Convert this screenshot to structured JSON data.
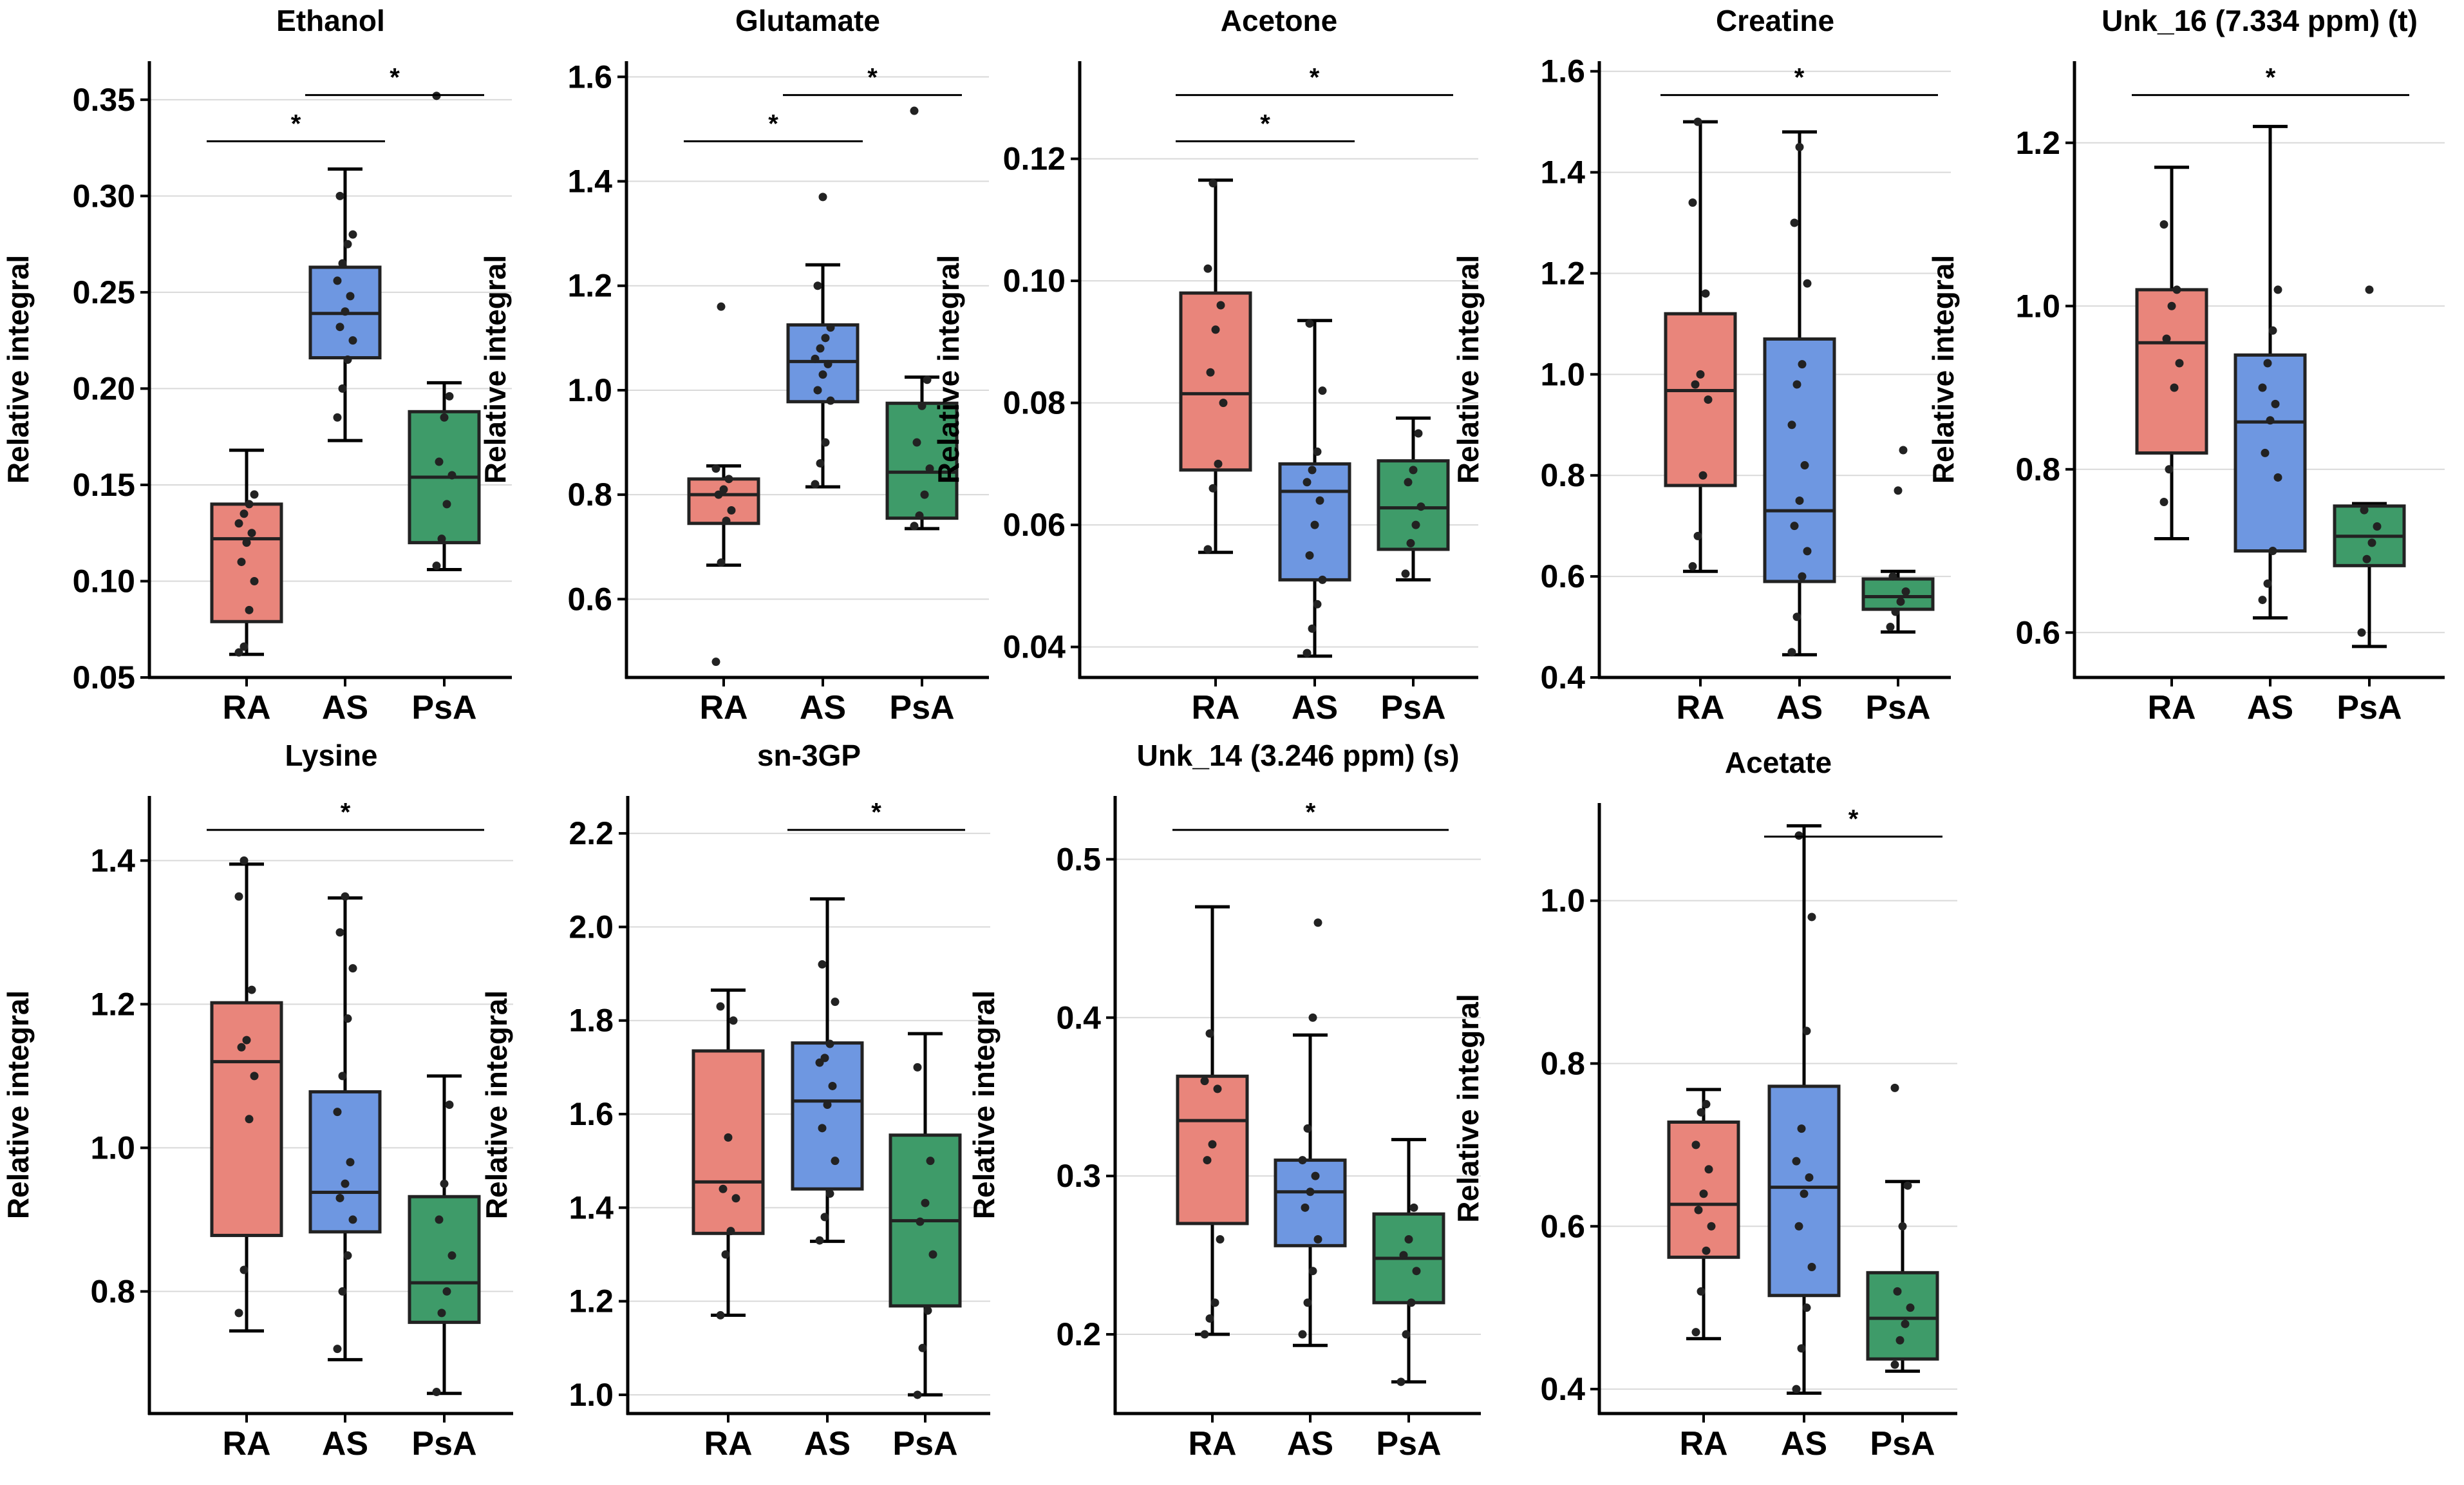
{
  "chart_data": [
    {
      "type": "box",
      "title": "Ethanol",
      "ylabel": "Relative integral",
      "categories": [
        "RA",
        "AS",
        "PsA"
      ],
      "ylim": [
        0.05,
        0.37
      ],
      "yticks": [
        0.05,
        0.1,
        0.15,
        0.2,
        0.25,
        0.3,
        0.35
      ],
      "tick_labels": [
        "0.05",
        "0.10",
        "0.15",
        "0.20",
        "0.25",
        "0.30",
        "0.35"
      ],
      "boxes": [
        {
          "group": "RA",
          "color": "#e9857b",
          "min": 0.062,
          "q1": 0.079,
          "median": 0.122,
          "q3": 0.14,
          "max": 0.168,
          "points": [
            0.063,
            0.066,
            0.085,
            0.1,
            0.11,
            0.12,
            0.125,
            0.13,
            0.135,
            0.14,
            0.145
          ]
        },
        {
          "group": "AS",
          "color": "#6e97e1",
          "min": 0.173,
          "q1": 0.216,
          "median": 0.239,
          "q3": 0.263,
          "max": 0.314,
          "points": [
            0.185,
            0.2,
            0.215,
            0.225,
            0.232,
            0.24,
            0.248,
            0.256,
            0.265,
            0.275,
            0.28,
            0.3
          ]
        },
        {
          "group": "PsA",
          "color": "#3e9b69",
          "min": 0.106,
          "q1": 0.12,
          "median": 0.154,
          "q3": 0.188,
          "max": 0.203,
          "points": [
            0.108,
            0.122,
            0.14,
            0.155,
            0.162,
            0.185,
            0.196,
            0.352
          ]
        }
      ],
      "significance": [
        {
          "pair": [
            "RA",
            "AS"
          ],
          "label": "*"
        },
        {
          "pair": [
            "AS",
            "PsA"
          ],
          "label": "*"
        }
      ]
    },
    {
      "type": "box",
      "title": "Glutamate",
      "ylabel": "Relative integral",
      "categories": [
        "RA",
        "AS",
        "PsA"
      ],
      "ylim": [
        0.45,
        1.63
      ],
      "yticks": [
        0.6,
        0.8,
        1.0,
        1.2,
        1.4,
        1.6
      ],
      "tick_labels": [
        "0.6",
        "0.8",
        "1.0",
        "1.2",
        "1.4",
        "1.6"
      ],
      "boxes": [
        {
          "group": "RA",
          "color": "#e9857b",
          "min": 0.665,
          "q1": 0.745,
          "median": 0.8,
          "q3": 0.83,
          "max": 0.855,
          "points": [
            0.48,
            0.67,
            0.75,
            0.77,
            0.8,
            0.81,
            0.83,
            0.85,
            1.16
          ]
        },
        {
          "group": "AS",
          "color": "#6e97e1",
          "min": 0.815,
          "q1": 0.978,
          "median": 1.055,
          "q3": 1.125,
          "max": 1.24,
          "points": [
            0.82,
            0.86,
            0.9,
            0.98,
            1.0,
            1.03,
            1.05,
            1.06,
            1.08,
            1.1,
            1.12,
            1.2,
            1.37
          ]
        },
        {
          "group": "PsA",
          "color": "#3e9b69",
          "min": 0.735,
          "q1": 0.755,
          "median": 0.843,
          "q3": 0.975,
          "max": 1.025,
          "points": [
            0.74,
            0.76,
            0.8,
            0.85,
            0.9,
            0.97,
            1.02,
            1.535
          ]
        }
      ],
      "significance": [
        {
          "pair": [
            "RA",
            "AS"
          ],
          "label": "*"
        },
        {
          "pair": [
            "AS",
            "PsA"
          ],
          "label": "*"
        }
      ]
    },
    {
      "type": "box",
      "title": "Acetone",
      "ylabel": "Relative integral",
      "categories": [
        "RA",
        "AS",
        "PsA"
      ],
      "ylim": [
        0.035,
        0.136
      ],
      "yticks": [
        0.04,
        0.06,
        0.08,
        0.1,
        0.12
      ],
      "tick_labels": [
        "0.04",
        "0.06",
        "0.08",
        "0.10",
        "0.12"
      ],
      "boxes": [
        {
          "group": "RA",
          "color": "#e9857b",
          "min": 0.0555,
          "q1": 0.069,
          "median": 0.0815,
          "q3": 0.098,
          "max": 0.1165,
          "points": [
            0.056,
            0.066,
            0.07,
            0.08,
            0.085,
            0.092,
            0.096,
            0.102,
            0.116
          ]
        },
        {
          "group": "AS",
          "color": "#6e97e1",
          "min": 0.0385,
          "q1": 0.051,
          "median": 0.0655,
          "q3": 0.07,
          "max": 0.0935,
          "points": [
            0.039,
            0.043,
            0.047,
            0.051,
            0.055,
            0.06,
            0.064,
            0.067,
            0.069,
            0.072,
            0.082,
            0.093
          ]
        },
        {
          "group": "PsA",
          "color": "#3e9b69",
          "min": 0.051,
          "q1": 0.056,
          "median": 0.0628,
          "q3": 0.0705,
          "max": 0.0775,
          "points": [
            0.052,
            0.057,
            0.06,
            0.063,
            0.067,
            0.069,
            0.075
          ]
        }
      ],
      "significance": [
        {
          "pair": [
            "RA",
            "AS"
          ],
          "label": "*"
        },
        {
          "pair": [
            "RA",
            "PsA"
          ],
          "label": "*"
        }
      ]
    },
    {
      "type": "box",
      "title": "Creatine",
      "ylabel": "Relative integral",
      "categories": [
        "RA",
        "AS",
        "PsA"
      ],
      "ylim": [
        0.4,
        1.62
      ],
      "yticks": [
        0.4,
        0.6,
        0.8,
        1.0,
        1.2,
        1.4,
        1.6
      ],
      "tick_labels": [
        "0.4",
        "0.6",
        "0.8",
        "1.0",
        "1.2",
        "1.4",
        "1.6"
      ],
      "boxes": [
        {
          "group": "RA",
          "color": "#e9857b",
          "min": 0.61,
          "q1": 0.78,
          "median": 0.968,
          "q3": 1.12,
          "max": 1.5,
          "points": [
            0.62,
            0.68,
            0.8,
            0.95,
            0.98,
            1.0,
            1.16,
            1.34,
            1.5
          ]
        },
        {
          "group": "AS",
          "color": "#6e97e1",
          "min": 0.445,
          "q1": 0.59,
          "median": 0.73,
          "q3": 1.07,
          "max": 1.48,
          "points": [
            0.45,
            0.52,
            0.6,
            0.65,
            0.7,
            0.75,
            0.82,
            0.9,
            0.98,
            1.02,
            1.18,
            1.3,
            1.45
          ]
        },
        {
          "group": "PsA",
          "color": "#3e9b69",
          "min": 0.49,
          "q1": 0.535,
          "median": 0.56,
          "q3": 0.595,
          "max": 0.61,
          "points": [
            0.5,
            0.53,
            0.55,
            0.57,
            0.6,
            0.77,
            0.85
          ]
        }
      ],
      "significance": [
        {
          "pair": [
            "RA",
            "PsA"
          ],
          "label": "*"
        }
      ]
    },
    {
      "type": "box",
      "title": "Unk_16 (7.334 ppm) (t)",
      "ylabel": "Relative integral",
      "categories": [
        "RA",
        "AS",
        "PsA"
      ],
      "ylim": [
        0.545,
        1.3
      ],
      "yticks": [
        0.6,
        0.8,
        1.0,
        1.2
      ],
      "tick_labels": [
        "0.6",
        "0.8",
        "1.0",
        "1.2"
      ],
      "boxes": [
        {
          "group": "RA",
          "color": "#e9857b",
          "min": 0.715,
          "q1": 0.82,
          "median": 0.955,
          "q3": 1.02,
          "max": 1.17,
          "points": [
            0.76,
            0.8,
            0.9,
            0.93,
            0.96,
            1.0,
            1.02,
            1.1
          ]
        },
        {
          "group": "AS",
          "color": "#6e97e1",
          "min": 0.618,
          "q1": 0.7,
          "median": 0.858,
          "q3": 0.94,
          "max": 1.22,
          "points": [
            0.64,
            0.66,
            0.7,
            0.79,
            0.82,
            0.86,
            0.88,
            0.9,
            0.93,
            0.97,
            1.02
          ]
        },
        {
          "group": "PsA",
          "color": "#3e9b69",
          "min": 0.583,
          "q1": 0.682,
          "median": 0.718,
          "q3": 0.755,
          "max": 0.758,
          "points": [
            0.6,
            0.69,
            0.71,
            0.73,
            0.75,
            1.02
          ]
        }
      ],
      "significance": [
        {
          "pair": [
            "RA",
            "PsA"
          ],
          "label": "*"
        }
      ]
    },
    {
      "type": "box",
      "title": "Lysine",
      "ylabel": "Relative integral",
      "categories": [
        "RA",
        "AS",
        "PsA"
      ],
      "ylim": [
        0.63,
        1.49
      ],
      "yticks": [
        0.8,
        1.0,
        1.2,
        1.4
      ],
      "tick_labels": [
        "0.8",
        "1.0",
        "1.2",
        "1.4"
      ],
      "boxes": [
        {
          "group": "RA",
          "color": "#e9857b",
          "min": 0.745,
          "q1": 0.878,
          "median": 1.12,
          "q3": 1.202,
          "max": 1.395,
          "points": [
            0.77,
            0.83,
            1.04,
            1.1,
            1.14,
            1.15,
            1.22,
            1.35,
            1.4
          ]
        },
        {
          "group": "AS",
          "color": "#6e97e1",
          "min": 0.705,
          "q1": 0.883,
          "median": 0.938,
          "q3": 1.078,
          "max": 1.348,
          "points": [
            0.72,
            0.8,
            0.85,
            0.9,
            0.93,
            0.95,
            0.98,
            1.05,
            1.1,
            1.18,
            1.25,
            1.3,
            1.35
          ]
        },
        {
          "group": "PsA",
          "color": "#3e9b69",
          "min": 0.658,
          "q1": 0.757,
          "median": 0.812,
          "q3": 0.932,
          "max": 1.1,
          "points": [
            0.66,
            0.77,
            0.8,
            0.85,
            0.9,
            0.95,
            1.06
          ]
        }
      ],
      "significance": [
        {
          "pair": [
            "RA",
            "PsA"
          ],
          "label": "*"
        }
      ]
    },
    {
      "type": "box",
      "title": "sn-3GP",
      "ylabel": "Relative integral",
      "categories": [
        "RA",
        "AS",
        "PsA"
      ],
      "ylim": [
        0.96,
        2.28
      ],
      "yticks": [
        1.0,
        1.2,
        1.4,
        1.6,
        1.8,
        2.0,
        2.2
      ],
      "tick_labels": [
        "1.0",
        "1.2",
        "1.4",
        "1.6",
        "1.8",
        "2.0",
        "2.2"
      ],
      "boxes": [
        {
          "group": "RA",
          "color": "#e9857b",
          "min": 1.17,
          "q1": 1.345,
          "median": 1.455,
          "q3": 1.735,
          "max": 1.865,
          "points": [
            1.17,
            1.3,
            1.35,
            1.42,
            1.44,
            1.55,
            1.8,
            1.83
          ]
        },
        {
          "group": "AS",
          "color": "#6e97e1",
          "min": 1.328,
          "q1": 1.44,
          "median": 1.628,
          "q3": 1.752,
          "max": 2.06,
          "points": [
            1.33,
            1.38,
            1.43,
            1.5,
            1.57,
            1.62,
            1.66,
            1.71,
            1.72,
            1.75,
            1.84,
            1.92
          ]
        },
        {
          "group": "PsA",
          "color": "#3e9b69",
          "min": 1.0,
          "q1": 1.19,
          "median": 1.372,
          "q3": 1.555,
          "max": 1.772,
          "points": [
            1.0,
            1.1,
            1.18,
            1.3,
            1.37,
            1.41,
            1.5,
            1.7
          ]
        }
      ],
      "significance": [
        {
          "pair": [
            "AS",
            "PsA"
          ],
          "label": "*"
        }
      ]
    },
    {
      "type": "box",
      "title": "Unk_14 (3.246 ppm) (s)",
      "ylabel": "Relative integral",
      "categories": [
        "RA",
        "AS",
        "PsA"
      ],
      "ylim": [
        0.15,
        0.54
      ],
      "yticks": [
        0.2,
        0.3,
        0.4,
        0.5
      ],
      "tick_labels": [
        "0.2",
        "0.3",
        "0.4",
        "0.5"
      ],
      "boxes": [
        {
          "group": "RA",
          "color": "#e9857b",
          "min": 0.2,
          "q1": 0.27,
          "median": 0.335,
          "q3": 0.363,
          "max": 0.47,
          "points": [
            0.2,
            0.21,
            0.22,
            0.26,
            0.31,
            0.32,
            0.355,
            0.36,
            0.39
          ]
        },
        {
          "group": "AS",
          "color": "#6e97e1",
          "min": 0.193,
          "q1": 0.256,
          "median": 0.29,
          "q3": 0.31,
          "max": 0.389,
          "points": [
            0.2,
            0.22,
            0.24,
            0.26,
            0.28,
            0.29,
            0.3,
            0.31,
            0.33,
            0.4,
            0.46
          ]
        },
        {
          "group": "PsA",
          "color": "#3e9b69",
          "min": 0.17,
          "q1": 0.22,
          "median": 0.248,
          "q3": 0.276,
          "max": 0.323,
          "points": [
            0.17,
            0.2,
            0.22,
            0.24,
            0.25,
            0.26,
            0.28
          ]
        }
      ],
      "significance": [
        {
          "pair": [
            "RA",
            "PsA"
          ],
          "label": "*"
        }
      ]
    },
    {
      "type": "box",
      "title": "Acetate",
      "ylabel": "Relative integral",
      "categories": [
        "RA",
        "AS",
        "PsA"
      ],
      "ylim": [
        0.37,
        1.12
      ],
      "yticks": [
        0.4,
        0.6,
        0.8,
        1.0
      ],
      "tick_labels": [
        "0.4",
        "0.6",
        "0.8",
        "1.0"
      ],
      "boxes": [
        {
          "group": "RA",
          "color": "#e9857b",
          "min": 0.462,
          "q1": 0.562,
          "median": 0.627,
          "q3": 0.728,
          "max": 0.768,
          "points": [
            0.47,
            0.52,
            0.57,
            0.6,
            0.62,
            0.64,
            0.67,
            0.7,
            0.74,
            0.75
          ]
        },
        {
          "group": "AS",
          "color": "#6e97e1",
          "min": 0.395,
          "q1": 0.515,
          "median": 0.648,
          "q3": 0.772,
          "max": 1.092,
          "points": [
            0.4,
            0.45,
            0.5,
            0.55,
            0.6,
            0.64,
            0.66,
            0.68,
            0.72,
            0.84,
            0.98,
            1.08
          ]
        },
        {
          "group": "PsA",
          "color": "#3e9b69",
          "min": 0.422,
          "q1": 0.437,
          "median": 0.487,
          "q3": 0.543,
          "max": 0.655,
          "points": [
            0.43,
            0.46,
            0.48,
            0.5,
            0.52,
            0.6,
            0.65,
            0.77
          ]
        }
      ],
      "significance": [
        {
          "pair": [
            "AS",
            "PsA"
          ],
          "label": "*"
        }
      ]
    }
  ]
}
